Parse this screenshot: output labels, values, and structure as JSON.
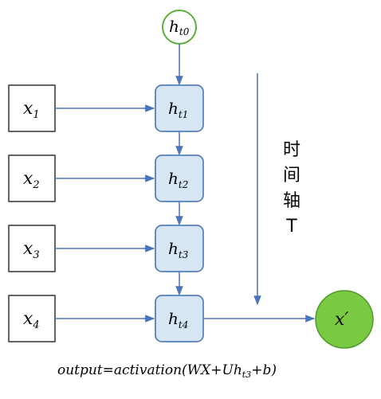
{
  "diagram": {
    "initial_state": {
      "main": "h",
      "sub": "t0"
    },
    "inputs": [
      {
        "main": "x",
        "sub": "1"
      },
      {
        "main": "x",
        "sub": "2"
      },
      {
        "main": "x",
        "sub": "3"
      },
      {
        "main": "x",
        "sub": "4"
      }
    ],
    "hidden_states": [
      {
        "main": "h",
        "sub": "t1"
      },
      {
        "main": "h",
        "sub": "t2"
      },
      {
        "main": "h",
        "sub": "t3"
      },
      {
        "main": "h",
        "sub": "t4"
      }
    ],
    "output": {
      "main": "x",
      "prime": "′"
    },
    "time_axis_label": [
      "时",
      "间",
      "轴",
      "T"
    ],
    "formula": {
      "before_sub": "output=activation(WX+Uh",
      "sub": "t3",
      "after_sub": "+b)"
    },
    "colors": {
      "hidden_fill": "#d6e6f5",
      "hidden_stroke": "#3d6db5",
      "arrow": "#4a74bd",
      "initial_stroke": "#5cae3e",
      "output_fill": "#7ac943",
      "output_stroke": "#4f9a2e",
      "input_stroke": "#333333"
    }
  }
}
